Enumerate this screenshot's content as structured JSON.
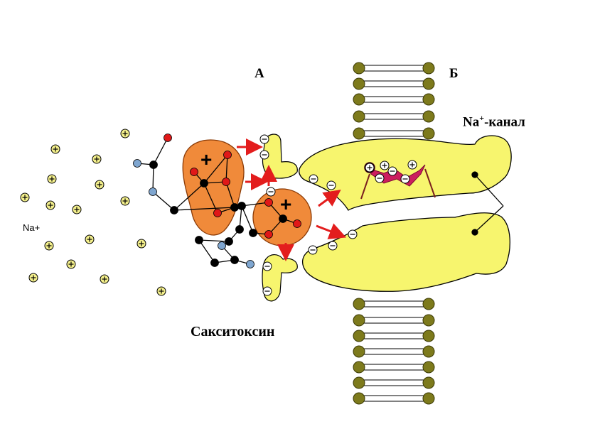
{
  "labels": {
    "a": "А",
    "b": "Б",
    "na_channel_prefix": "Na",
    "na_channel_sup": "+",
    "na_channel_suffix": "-канал",
    "toxin": "Сакситоксин",
    "na_ions": "Na+"
  },
  "colors": {
    "membrane_head": "#7d7a1c",
    "protein": "#f7f56e",
    "toxin": "#f08a3a",
    "arrow": "#e31d1d",
    "atom_red": "#e01818",
    "atom_blue": "#7fa6d0",
    "atom_black": "#000000",
    "gate": "#cc1d5e",
    "ion": "#f4f08c"
  },
  "icons": {
    "positive": "plus-sign",
    "negative": "minus-sign"
  }
}
